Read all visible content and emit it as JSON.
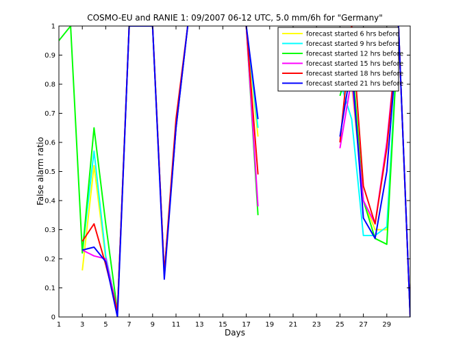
{
  "chart_data": {
    "type": "line",
    "title": "COSMO-EU and RANIE 1: 09/2007 06-12 UTC, 5.0 mm/6h for \"Germany\"",
    "xlabel": "Days",
    "ylabel": "False alarm ratio",
    "xlim": [
      1,
      31
    ],
    "ylim": [
      0,
      1
    ],
    "xticks": [
      1,
      3,
      5,
      7,
      9,
      11,
      13,
      15,
      17,
      19,
      21,
      23,
      25,
      27,
      29
    ],
    "yticks": [
      0,
      0.1,
      0.2,
      0.3,
      0.4,
      0.5,
      0.6,
      0.7,
      0.8,
      0.9,
      1
    ],
    "grid": false,
    "legend_position": "top-right",
    "series": [
      {
        "name": "forecast started 6 hrs before",
        "color": "#ffff00",
        "points": [
          [
            3,
            0.16
          ],
          [
            4,
            0.52
          ],
          [
            5,
            0.2
          ],
          [
            6,
            0.02
          ],
          [
            7,
            1
          ],
          [
            8,
            1
          ],
          [
            9,
            1
          ],
          [
            10,
            0.15
          ],
          [
            11,
            0.65
          ],
          [
            12,
            1
          ],
          [
            null,
            null
          ],
          [
            17,
            1
          ],
          [
            18,
            0.62
          ],
          [
            null,
            null
          ],
          [
            25,
            0.83
          ],
          [
            26,
            0.8
          ],
          [
            27,
            0.4
          ],
          [
            28,
            0.3
          ],
          [
            29,
            0.3
          ],
          [
            30,
            1
          ],
          [
            31,
            0
          ]
        ]
      },
      {
        "name": "forecast started 9 hrs before",
        "color": "#00ffff",
        "points": [
          [
            3,
            0.22
          ],
          [
            4,
            0.57
          ],
          [
            5,
            0.21
          ],
          [
            6,
            0.02
          ],
          [
            7,
            1
          ],
          [
            8,
            1
          ],
          [
            9,
            1
          ],
          [
            10,
            0.15
          ],
          [
            11,
            0.65
          ],
          [
            12,
            1
          ],
          [
            null,
            null
          ],
          [
            17,
            1
          ],
          [
            18,
            0.65
          ],
          [
            null,
            null
          ],
          [
            25,
            0.81
          ],
          [
            26,
            0.68
          ],
          [
            27,
            0.28
          ],
          [
            28,
            0.28
          ],
          [
            29,
            0.31
          ],
          [
            30,
            1
          ],
          [
            31,
            0
          ]
        ]
      },
      {
        "name": "forecast started 12 hrs before",
        "color": "#00ff00",
        "points": [
          [
            1,
            0.95
          ],
          [
            2,
            1
          ],
          [
            3,
            0.22
          ],
          [
            4,
            0.65
          ],
          [
            5,
            0.32
          ],
          [
            6,
            0.02
          ],
          [
            7,
            1
          ],
          [
            8,
            1
          ],
          [
            9,
            1
          ],
          [
            10,
            0.15
          ],
          [
            11,
            0.65
          ],
          [
            12,
            1
          ],
          [
            null,
            null
          ],
          [
            17,
            1
          ],
          [
            18,
            0.35
          ],
          [
            null,
            null
          ],
          [
            25,
            0.76
          ],
          [
            26,
            0.9
          ],
          [
            27,
            0.4
          ],
          [
            28,
            0.27
          ],
          [
            29,
            0.25
          ],
          [
            30,
            1
          ],
          [
            31,
            0
          ]
        ]
      },
      {
        "name": "forecast started 15 hrs before",
        "color": "#ff00ff",
        "points": [
          [
            3,
            0.23
          ],
          [
            4,
            0.21
          ],
          [
            5,
            0.2
          ],
          [
            6,
            0.02
          ],
          [
            7,
            1
          ],
          [
            8,
            1
          ],
          [
            9,
            1
          ],
          [
            10,
            0.15
          ],
          [
            11,
            0.65
          ],
          [
            12,
            1
          ],
          [
            null,
            null
          ],
          [
            17,
            1
          ],
          [
            18,
            0.38
          ],
          [
            null,
            null
          ],
          [
            25,
            0.58
          ],
          [
            26,
            0.82
          ],
          [
            27,
            0.4
          ],
          [
            28,
            0.32
          ],
          [
            29,
            0.6
          ],
          [
            30,
            1
          ],
          [
            31,
            0
          ]
        ]
      },
      {
        "name": "forecast started 18 hrs before",
        "color": "#ff0000",
        "points": [
          [
            3,
            0.26
          ],
          [
            4,
            0.32
          ],
          [
            5,
            0.18
          ],
          [
            6,
            0.02
          ],
          [
            7,
            1
          ],
          [
            8,
            1
          ],
          [
            9,
            1
          ],
          [
            10,
            0.15
          ],
          [
            11,
            0.68
          ],
          [
            12,
            1
          ],
          [
            null,
            null
          ],
          [
            17,
            1
          ],
          [
            18,
            0.49
          ],
          [
            null,
            null
          ],
          [
            25,
            0.6
          ],
          [
            26,
            1
          ],
          [
            27,
            0.45
          ],
          [
            28,
            0.32
          ],
          [
            29,
            0.58
          ],
          [
            30,
            1
          ],
          [
            31,
            0
          ]
        ]
      },
      {
        "name": "forecast started 21 hrs before",
        "color": "#0000ff",
        "points": [
          [
            3,
            0.23
          ],
          [
            4,
            0.24
          ],
          [
            5,
            0.19
          ],
          [
            6,
            0.0
          ],
          [
            7,
            1
          ],
          [
            8,
            1
          ],
          [
            9,
            1
          ],
          [
            10,
            0.13
          ],
          [
            11,
            0.65
          ],
          [
            12,
            1
          ],
          [
            null,
            null
          ],
          [
            17,
            1
          ],
          [
            18,
            0.68
          ],
          [
            null,
            null
          ],
          [
            25,
            0.62
          ],
          [
            26,
            0.87
          ],
          [
            27,
            0.34
          ],
          [
            28,
            0.27
          ],
          [
            29,
            0.5
          ],
          [
            30,
            1
          ],
          [
            31,
            0
          ]
        ]
      }
    ]
  }
}
